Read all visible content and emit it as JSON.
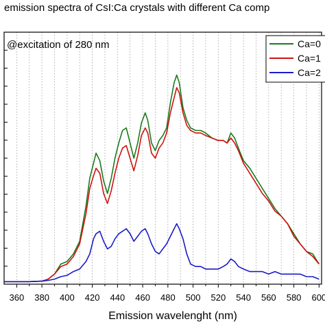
{
  "chart_data": {
    "type": "line",
    "title": "emission spectra of CsI:Ca crystals with different Ca comp",
    "annotation": "@excitation of 280 nm",
    "xlabel": "Emission wavelenght (nm)",
    "ylabel": "",
    "xlim": [
      350,
      602
    ],
    "ylim": [
      0,
      1.0
    ],
    "x_ticks": [
      360,
      380,
      400,
      420,
      440,
      460,
      480,
      500,
      520,
      540,
      560,
      580,
      600
    ],
    "grid": "vertical dotted lines",
    "legend_position": "top-right",
    "series": [
      {
        "name": "Ca=0",
        "color": "#1a7a1a",
        "points": [
          [
            350,
            0.01
          ],
          [
            370,
            0.01
          ],
          [
            380,
            0.012
          ],
          [
            385,
            0.02
          ],
          [
            390,
            0.04
          ],
          [
            395,
            0.08
          ],
          [
            400,
            0.09
          ],
          [
            405,
            0.12
          ],
          [
            410,
            0.17
          ],
          [
            415,
            0.31
          ],
          [
            418,
            0.42
          ],
          [
            421,
            0.48
          ],
          [
            423,
            0.52
          ],
          [
            426,
            0.49
          ],
          [
            429,
            0.41
          ],
          [
            432,
            0.36
          ],
          [
            435,
            0.42
          ],
          [
            438,
            0.5
          ],
          [
            441,
            0.56
          ],
          [
            444,
            0.61
          ],
          [
            447,
            0.62
          ],
          [
            450,
            0.56
          ],
          [
            453,
            0.5
          ],
          [
            456,
            0.56
          ],
          [
            459,
            0.64
          ],
          [
            462,
            0.68
          ],
          [
            464,
            0.65
          ],
          [
            467,
            0.56
          ],
          [
            470,
            0.53
          ],
          [
            473,
            0.57
          ],
          [
            476,
            0.59
          ],
          [
            479,
            0.62
          ],
          [
            482,
            0.72
          ],
          [
            485,
            0.8
          ],
          [
            487,
            0.83
          ],
          [
            489,
            0.8
          ],
          [
            492,
            0.7
          ],
          [
            495,
            0.65
          ],
          [
            498,
            0.62
          ],
          [
            502,
            0.61
          ],
          [
            506,
            0.61
          ],
          [
            510,
            0.6
          ],
          [
            515,
            0.58
          ],
          [
            520,
            0.57
          ],
          [
            524,
            0.57
          ],
          [
            527,
            0.56
          ],
          [
            530,
            0.6
          ],
          [
            533,
            0.58
          ],
          [
            536,
            0.54
          ],
          [
            540,
            0.49
          ],
          [
            545,
            0.46
          ],
          [
            550,
            0.42
          ],
          [
            555,
            0.38
          ],
          [
            560,
            0.34
          ],
          [
            565,
            0.3
          ],
          [
            570,
            0.27
          ],
          [
            575,
            0.24
          ],
          [
            580,
            0.2
          ],
          [
            585,
            0.16
          ],
          [
            590,
            0.13
          ],
          [
            595,
            0.12
          ],
          [
            600,
            0.08
          ]
        ]
      },
      {
        "name": "Ca=1",
        "color": "#d01010",
        "points": [
          [
            350,
            0.01
          ],
          [
            370,
            0.01
          ],
          [
            380,
            0.012
          ],
          [
            385,
            0.02
          ],
          [
            390,
            0.04
          ],
          [
            395,
            0.07
          ],
          [
            400,
            0.08
          ],
          [
            405,
            0.11
          ],
          [
            410,
            0.16
          ],
          [
            415,
            0.28
          ],
          [
            418,
            0.38
          ],
          [
            421,
            0.43
          ],
          [
            423,
            0.46
          ],
          [
            426,
            0.44
          ],
          [
            429,
            0.36
          ],
          [
            432,
            0.32
          ],
          [
            435,
            0.37
          ],
          [
            438,
            0.44
          ],
          [
            441,
            0.5
          ],
          [
            444,
            0.54
          ],
          [
            447,
            0.55
          ],
          [
            450,
            0.5
          ],
          [
            453,
            0.45
          ],
          [
            456,
            0.51
          ],
          [
            459,
            0.59
          ],
          [
            462,
            0.62
          ],
          [
            464,
            0.6
          ],
          [
            467,
            0.52
          ],
          [
            470,
            0.5
          ],
          [
            473,
            0.54
          ],
          [
            476,
            0.56
          ],
          [
            479,
            0.6
          ],
          [
            482,
            0.68
          ],
          [
            485,
            0.74
          ],
          [
            487,
            0.78
          ],
          [
            489,
            0.76
          ],
          [
            492,
            0.68
          ],
          [
            495,
            0.63
          ],
          [
            498,
            0.61
          ],
          [
            502,
            0.6
          ],
          [
            506,
            0.6
          ],
          [
            510,
            0.59
          ],
          [
            515,
            0.58
          ],
          [
            520,
            0.57
          ],
          [
            524,
            0.57
          ],
          [
            527,
            0.56
          ],
          [
            530,
            0.58
          ],
          [
            533,
            0.56
          ],
          [
            536,
            0.53
          ],
          [
            540,
            0.48
          ],
          [
            545,
            0.44
          ],
          [
            550,
            0.4
          ],
          [
            555,
            0.36
          ],
          [
            560,
            0.33
          ],
          [
            565,
            0.29
          ],
          [
            570,
            0.27
          ],
          [
            575,
            0.24
          ],
          [
            580,
            0.19
          ],
          [
            585,
            0.16
          ],
          [
            590,
            0.13
          ],
          [
            595,
            0.11
          ],
          [
            600,
            0.08
          ]
        ]
      },
      {
        "name": "Ca=2",
        "color": "#1a1ac8",
        "points": [
          [
            350,
            0.01
          ],
          [
            370,
            0.01
          ],
          [
            380,
            0.012
          ],
          [
            385,
            0.015
          ],
          [
            390,
            0.02
          ],
          [
            395,
            0.03
          ],
          [
            400,
            0.035
          ],
          [
            405,
            0.05
          ],
          [
            410,
            0.06
          ],
          [
            415,
            0.09
          ],
          [
            418,
            0.12
          ],
          [
            421,
            0.18
          ],
          [
            423,
            0.2
          ],
          [
            426,
            0.21
          ],
          [
            429,
            0.17
          ],
          [
            432,
            0.14
          ],
          [
            435,
            0.15
          ],
          [
            438,
            0.18
          ],
          [
            441,
            0.2
          ],
          [
            444,
            0.21
          ],
          [
            447,
            0.22
          ],
          [
            450,
            0.2
          ],
          [
            453,
            0.17
          ],
          [
            456,
            0.19
          ],
          [
            459,
            0.21
          ],
          [
            462,
            0.22
          ],
          [
            464,
            0.2
          ],
          [
            467,
            0.16
          ],
          [
            470,
            0.13
          ],
          [
            473,
            0.12
          ],
          [
            476,
            0.14
          ],
          [
            479,
            0.16
          ],
          [
            482,
            0.19
          ],
          [
            485,
            0.22
          ],
          [
            487,
            0.24
          ],
          [
            489,
            0.22
          ],
          [
            492,
            0.18
          ],
          [
            495,
            0.12
          ],
          [
            498,
            0.08
          ],
          [
            502,
            0.07
          ],
          [
            506,
            0.07
          ],
          [
            510,
            0.06
          ],
          [
            515,
            0.06
          ],
          [
            520,
            0.06
          ],
          [
            524,
            0.07
          ],
          [
            527,
            0.08
          ],
          [
            530,
            0.1
          ],
          [
            533,
            0.09
          ],
          [
            536,
            0.07
          ],
          [
            540,
            0.06
          ],
          [
            545,
            0.05
          ],
          [
            550,
            0.05
          ],
          [
            555,
            0.05
          ],
          [
            560,
            0.04
          ],
          [
            565,
            0.05
          ],
          [
            570,
            0.04
          ],
          [
            575,
            0.04
          ],
          [
            580,
            0.04
          ],
          [
            585,
            0.04
          ],
          [
            590,
            0.03
          ],
          [
            595,
            0.03
          ],
          [
            600,
            0.02
          ]
        ]
      }
    ]
  }
}
